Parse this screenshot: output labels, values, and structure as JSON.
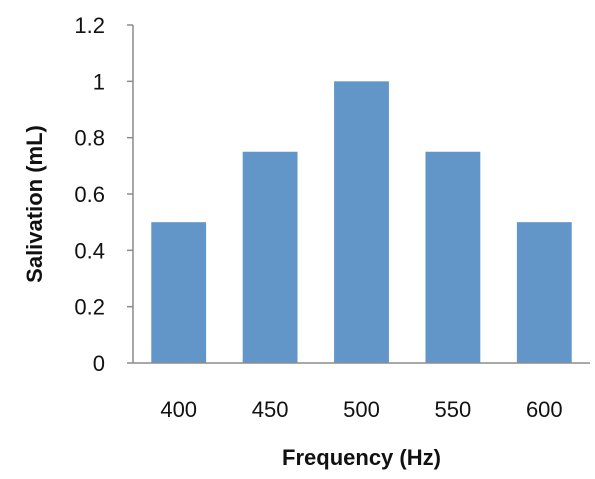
{
  "chart_data": {
    "type": "bar",
    "categories": [
      "400",
      "450",
      "500",
      "550",
      "600"
    ],
    "values": [
      0.5,
      0.75,
      1.0,
      0.75,
      0.5
    ],
    "xlabel": "Frequency (Hz)",
    "ylabel": "Salivation (mL)",
    "ylim": [
      0,
      1.2
    ],
    "yticks": [
      "0",
      "0.2",
      "0.4",
      "0.6",
      "0.8",
      "1",
      "1.2"
    ],
    "ytick_values": [
      0,
      0.2,
      0.4,
      0.6,
      0.8,
      1.0,
      1.2
    ],
    "grid": false,
    "legend": "none",
    "bar_color": "#6295c8"
  }
}
